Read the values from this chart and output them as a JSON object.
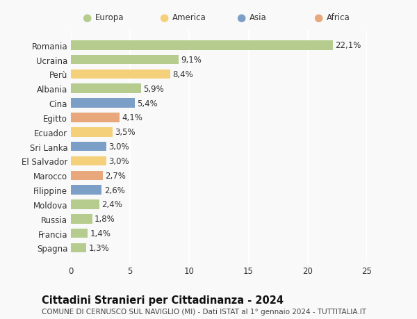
{
  "countries": [
    "Romania",
    "Ucraina",
    "Perù",
    "Albania",
    "Cina",
    "Egitto",
    "Ecuador",
    "Sri Lanka",
    "El Salvador",
    "Marocco",
    "Filippine",
    "Moldova",
    "Russia",
    "Francia",
    "Spagna"
  ],
  "values": [
    22.1,
    9.1,
    8.4,
    5.9,
    5.4,
    4.1,
    3.5,
    3.0,
    3.0,
    2.7,
    2.6,
    2.4,
    1.8,
    1.4,
    1.3
  ],
  "labels": [
    "22,1%",
    "9,1%",
    "8,4%",
    "5,9%",
    "5,4%",
    "4,1%",
    "3,5%",
    "3,0%",
    "3,0%",
    "2,7%",
    "2,6%",
    "2,4%",
    "1,8%",
    "1,4%",
    "1,3%"
  ],
  "continents": [
    "Europa",
    "Europa",
    "America",
    "Europa",
    "Asia",
    "Africa",
    "America",
    "Asia",
    "America",
    "Africa",
    "Asia",
    "Europa",
    "Europa",
    "Europa",
    "Europa"
  ],
  "colors": {
    "Europa": "#b5cc8e",
    "America": "#f5d07a",
    "Asia": "#7b9fc7",
    "Africa": "#e8a87c"
  },
  "legend_order": [
    "Europa",
    "America",
    "Asia",
    "Africa"
  ],
  "xlim": [
    0,
    25
  ],
  "xticks": [
    0,
    5,
    10,
    15,
    20,
    25
  ],
  "title": "Cittadini Stranieri per Cittadinanza - 2024",
  "subtitle": "COMUNE DI CERNUSCO SUL NAVIGLIO (MI) - Dati ISTAT al 1° gennaio 2024 - TUTTITALIA.IT",
  "background_color": "#f9f9f9",
  "grid_color": "#ffffff",
  "bar_height": 0.65,
  "label_fontsize": 8.5,
  "tick_fontsize": 8.5,
  "title_fontsize": 10.5,
  "subtitle_fontsize": 7.5
}
